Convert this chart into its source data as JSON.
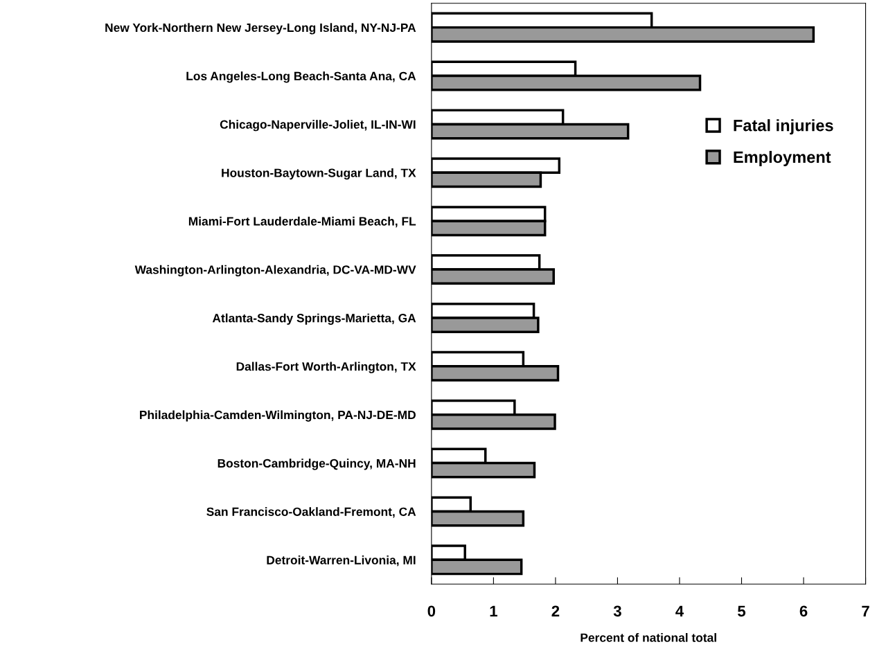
{
  "chart_data": {
    "type": "bar",
    "orientation": "horizontal",
    "xlabel": "Percent of national total",
    "categories": [
      "New York-Northern New Jersey-Long Island, NY-NJ-PA",
      "Los Angeles-Long Beach-Santa Ana, CA",
      "Chicago-Naperville-Joliet, IL-IN-WI",
      "Houston-Baytown-Sugar Land, TX",
      "Miami-Fort Lauderdale-Miami Beach, FL",
      "Washington-Arlington-Alexandria, DC-VA-MD-WV",
      "Atlanta-Sandy Springs-Marietta, GA",
      "Dallas-Fort Worth-Arlington, TX",
      "Philadelphia-Camden-Wilmington, PA-NJ-DE-MD",
      "Boston-Cambridge-Quincy, MA-NH",
      "San Francisco-Oakland-Fremont, CA",
      "Detroit-Warren-Livonia, MI"
    ],
    "series": [
      {
        "name": "Fatal injuries",
        "color": "#ffffff",
        "values": [
          3.55,
          2.32,
          2.12,
          2.06,
          1.83,
          1.74,
          1.65,
          1.48,
          1.34,
          0.87,
          0.63,
          0.54
        ]
      },
      {
        "name": "Employment",
        "color": "#999999",
        "values": [
          6.16,
          4.33,
          3.17,
          1.76,
          1.83,
          1.97,
          1.72,
          2.04,
          1.99,
          1.66,
          1.48,
          1.45
        ]
      }
    ],
    "xlim": [
      0,
      7
    ],
    "xticks": [
      0,
      1,
      2,
      3,
      4,
      5,
      6,
      7
    ],
    "grid": false,
    "legend": "right"
  }
}
